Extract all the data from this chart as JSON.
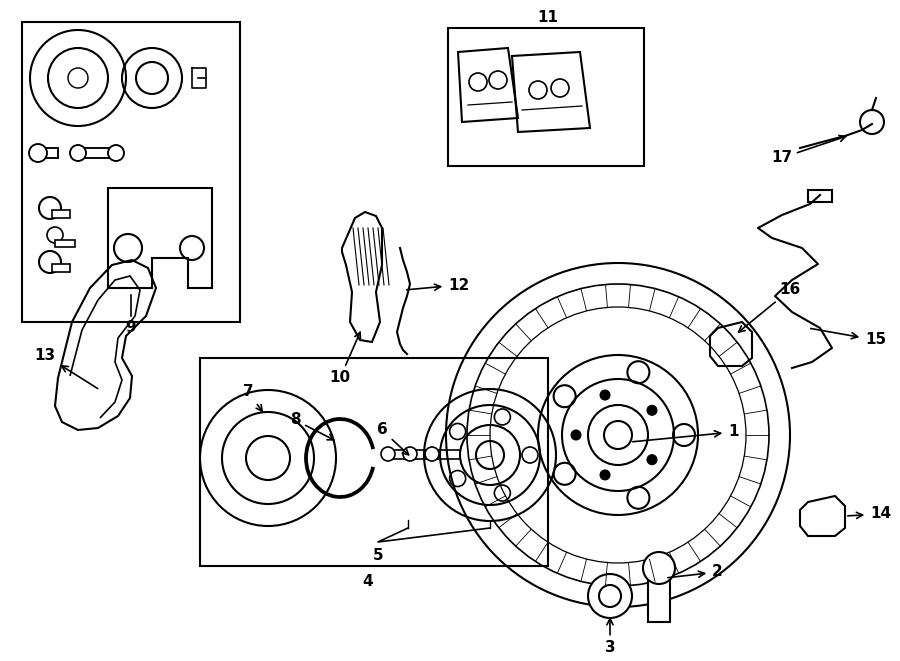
{
  "background_color": "#ffffff",
  "line_color": "#000000",
  "line_width": 1.5,
  "fig_width": 9.0,
  "fig_height": 6.61,
  "dpi": 100
}
